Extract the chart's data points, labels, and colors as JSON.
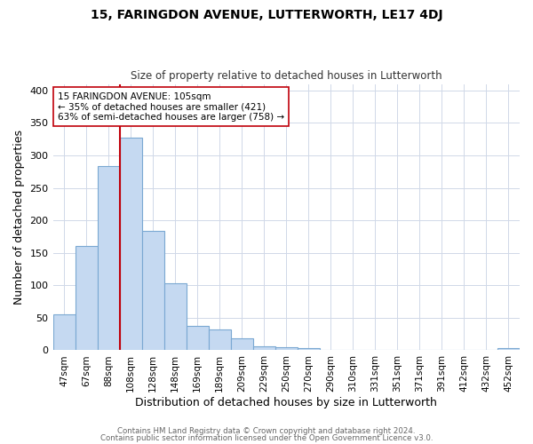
{
  "title": "15, FARINGDON AVENUE, LUTTERWORTH, LE17 4DJ",
  "subtitle": "Size of property relative to detached houses in Lutterworth",
  "xlabel": "Distribution of detached houses by size in Lutterworth",
  "ylabel": "Number of detached properties",
  "bar_labels": [
    "47sqm",
    "67sqm",
    "88sqm",
    "108sqm",
    "128sqm",
    "148sqm",
    "169sqm",
    "189sqm",
    "209sqm",
    "229sqm",
    "250sqm",
    "270sqm",
    "290sqm",
    "310sqm",
    "331sqm",
    "351sqm",
    "371sqm",
    "391sqm",
    "412sqm",
    "432sqm",
    "452sqm"
  ],
  "bar_heights": [
    55,
    160,
    284,
    328,
    184,
    103,
    37,
    32,
    18,
    6,
    5,
    4,
    0,
    0,
    0,
    0,
    0,
    0,
    0,
    0,
    3
  ],
  "bar_color": "#c5d9f1",
  "bar_edge_color": "#7aa8d2",
  "vline_color": "#c0000a",
  "annotation_title": "15 FARINGDON AVENUE: 105sqm",
  "annotation_line1": "← 35% of detached houses are smaller (421)",
  "annotation_line2": "63% of semi-detached houses are larger (758) →",
  "annotation_box_color": "#ffffff",
  "annotation_box_edge": "#c0000a",
  "ylim": [
    0,
    410
  ],
  "yticks": [
    0,
    50,
    100,
    150,
    200,
    250,
    300,
    350,
    400
  ],
  "footer1": "Contains HM Land Registry data © Crown copyright and database right 2024.",
  "footer2": "Contains public sector information licensed under the Open Government Licence v3.0.",
  "bg_color": "#ffffff",
  "grid_color": "#d0d8e8"
}
